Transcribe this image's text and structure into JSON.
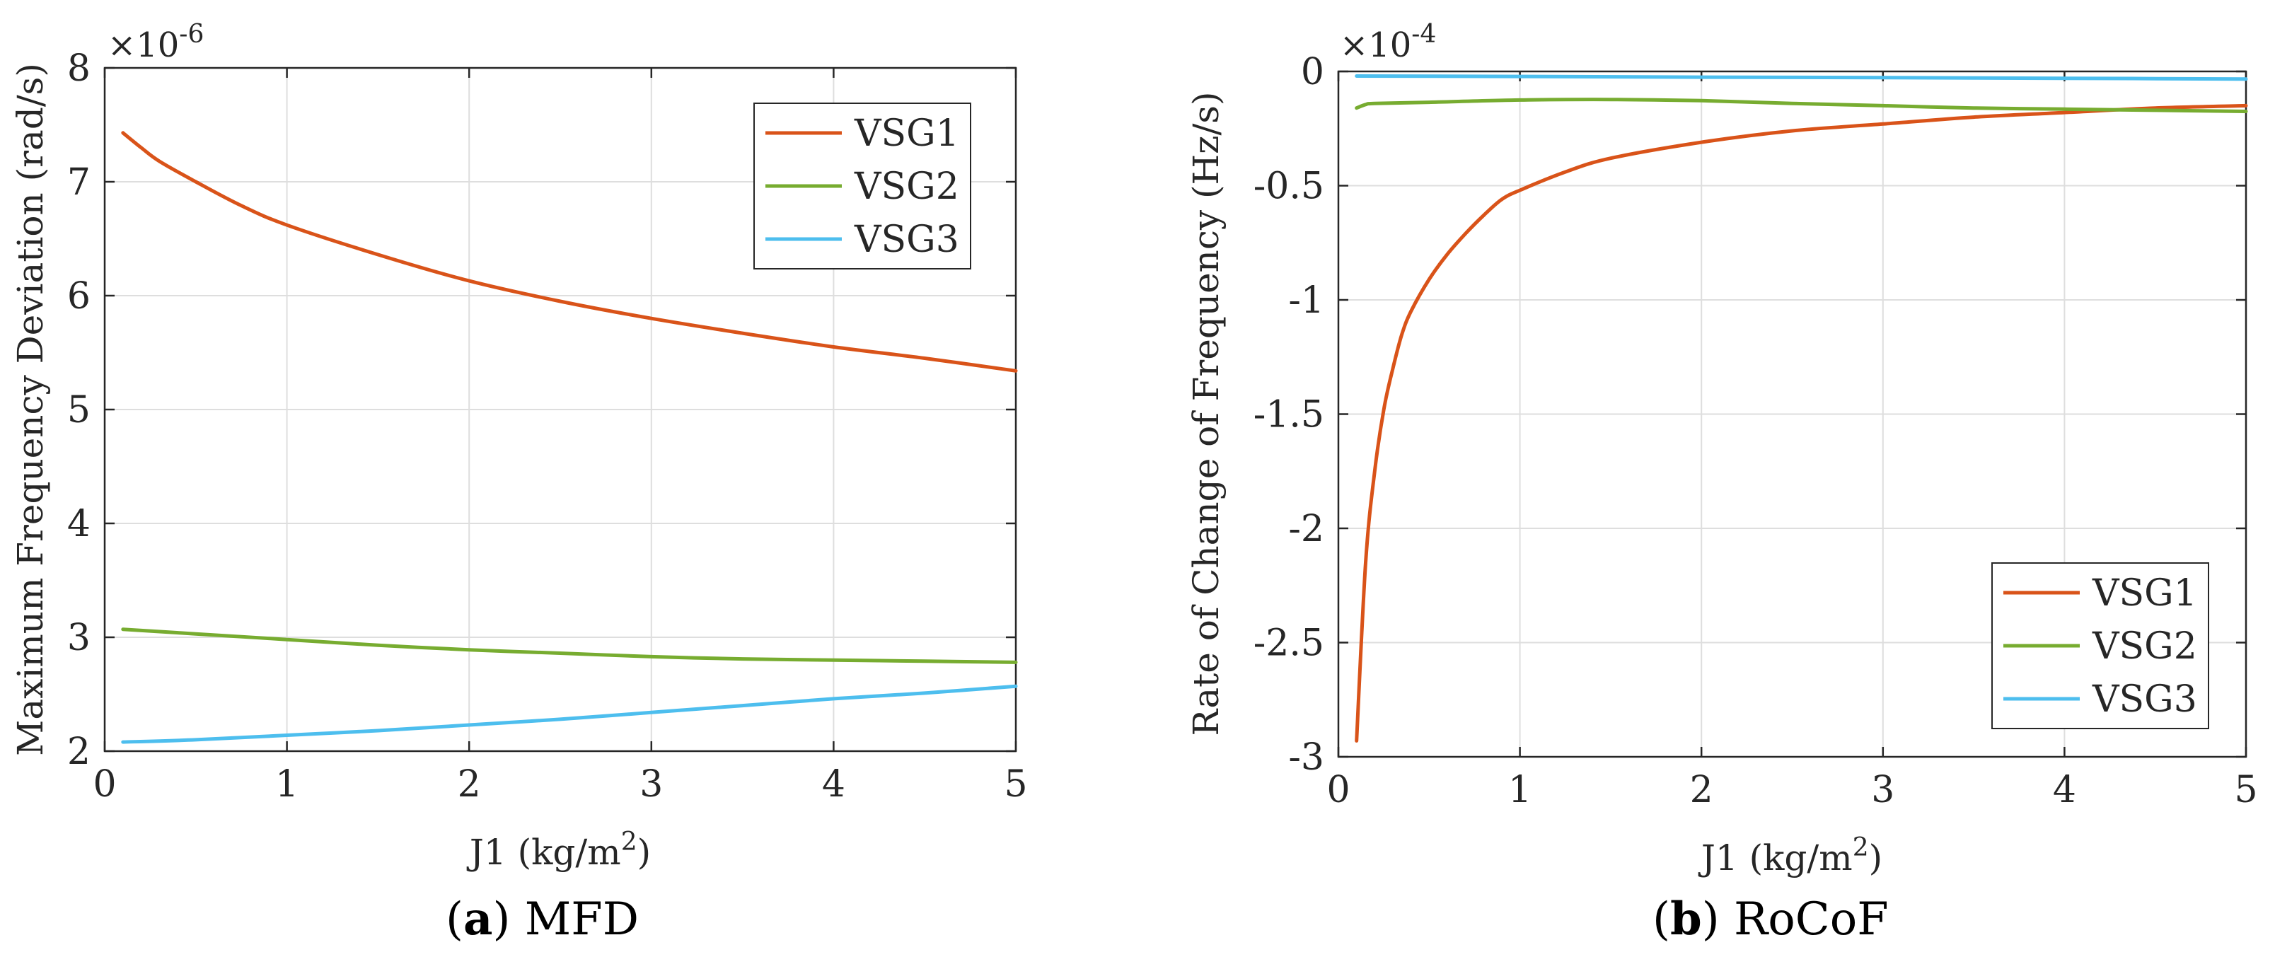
{
  "chart_data": [
    {
      "type": "line",
      "panel": "a",
      "caption_label": "a",
      "caption_text": "MFD",
      "xlabel": "J1 (kg/m",
      "xlabel_sup": "2",
      "xlabel_close": ")",
      "ylabel": "Maximum Frequency Deviation (rad/s)",
      "multiplier_base": "×10",
      "multiplier_exp": "-6",
      "xlim": [
        0,
        5
      ],
      "ylim": [
        2,
        8
      ],
      "xticks": [
        0,
        1,
        2,
        3,
        4,
        5
      ],
      "xtick_labels": [
        "0",
        "1",
        "2",
        "3",
        "4",
        "5"
      ],
      "yticks": [
        2,
        3,
        4,
        5,
        6,
        7,
        8
      ],
      "ytick_labels": [
        "2",
        "3",
        "4",
        "5",
        "6",
        "7",
        "8"
      ],
      "grid": true,
      "legend_position": "top-right",
      "series": [
        {
          "name": "VSG1",
          "color": "#D95319",
          "x": [
            0.1,
            0.2,
            0.3,
            0.5,
            0.75,
            1.0,
            1.5,
            2.0,
            2.5,
            3.0,
            3.5,
            4.0,
            4.5,
            5.0
          ],
          "y": [
            7.43,
            7.3,
            7.18,
            7.0,
            6.79,
            6.62,
            6.36,
            6.13,
            5.95,
            5.8,
            5.67,
            5.55,
            5.45,
            5.34
          ]
        },
        {
          "name": "VSG2",
          "color": "#77AC30",
          "x": [
            0.1,
            0.5,
            1.0,
            1.5,
            2.0,
            2.5,
            3.0,
            3.5,
            4.0,
            4.5,
            5.0
          ],
          "y": [
            3.07,
            3.03,
            2.98,
            2.93,
            2.89,
            2.86,
            2.83,
            2.81,
            2.8,
            2.79,
            2.78
          ]
        },
        {
          "name": "VSG3",
          "color": "#4DBEEE",
          "x": [
            0.1,
            0.5,
            1.0,
            1.5,
            2.0,
            2.5,
            3.0,
            3.5,
            4.0,
            4.5,
            5.0
          ],
          "y": [
            2.08,
            2.1,
            2.14,
            2.18,
            2.23,
            2.28,
            2.34,
            2.4,
            2.46,
            2.51,
            2.57
          ]
        }
      ]
    },
    {
      "type": "line",
      "panel": "b",
      "caption_label": "b",
      "caption_text": "RoCoF",
      "xlabel": "J1 (kg/m",
      "xlabel_sup": "2",
      "xlabel_close": ")",
      "ylabel": "Rate of Change of Frequency (Hz/s)",
      "multiplier_base": "×10",
      "multiplier_exp": "-4",
      "xlim": [
        0,
        5
      ],
      "ylim": [
        -3,
        0
      ],
      "xticks": [
        0,
        1,
        2,
        3,
        4,
        5
      ],
      "xtick_labels": [
        "0",
        "1",
        "2",
        "3",
        "4",
        "5"
      ],
      "yticks": [
        -3,
        -2.5,
        -2,
        -1.5,
        -1,
        -0.5,
        0
      ],
      "ytick_labels": [
        "-3",
        "-2.5",
        "-2",
        "-1.5",
        "-1",
        "-0.5",
        "0"
      ],
      "grid": true,
      "legend_position": "bottom-right",
      "series": [
        {
          "name": "VSG1",
          "color": "#D95319",
          "x": [
            0.1,
            0.15,
            0.2,
            0.25,
            0.3,
            0.35,
            0.4,
            0.5,
            0.6,
            0.7,
            0.8,
            0.9,
            1.0,
            1.25,
            1.5,
            2.0,
            2.5,
            3.0,
            3.5,
            4.0,
            4.5,
            5.0
          ],
          "y": [
            -2.93,
            -2.15,
            -1.75,
            -1.48,
            -1.3,
            -1.15,
            -1.05,
            -0.91,
            -0.8,
            -0.71,
            -0.63,
            -0.56,
            -0.52,
            -0.44,
            -0.38,
            -0.31,
            -0.26,
            -0.23,
            -0.2,
            -0.18,
            -0.16,
            -0.15
          ]
        },
        {
          "name": "VSG2",
          "color": "#77AC30",
          "x": [
            0.1,
            0.15,
            0.2,
            0.5,
            1.0,
            1.5,
            2.0,
            2.5,
            3.0,
            3.5,
            4.0,
            4.5,
            5.0
          ],
          "y": [
            -0.16,
            -0.145,
            -0.14,
            -0.135,
            -0.125,
            -0.123,
            -0.128,
            -0.14,
            -0.15,
            -0.16,
            -0.165,
            -0.17,
            -0.175
          ]
        },
        {
          "name": "VSG3",
          "color": "#4DBEEE",
          "x": [
            0.1,
            1.0,
            2.0,
            3.0,
            4.0,
            5.0
          ],
          "y": [
            -0.02,
            -0.022,
            -0.025,
            -0.027,
            -0.03,
            -0.033
          ]
        }
      ]
    }
  ]
}
